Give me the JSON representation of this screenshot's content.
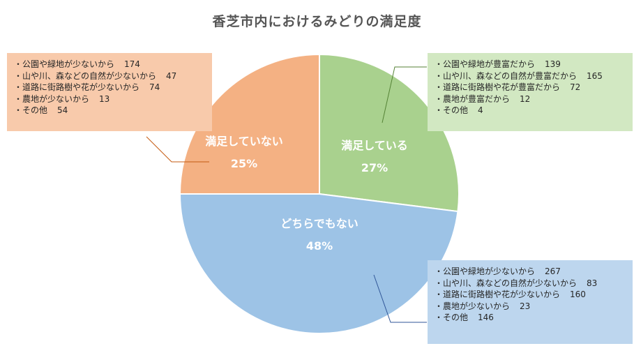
{
  "chart_data": {
    "type": "pie",
    "title": "香芝市内におけるみどりの満足度",
    "slices": [
      {
        "label": "満足している",
        "percent_label": "27%",
        "value": 27,
        "color": "#a9d18e"
      },
      {
        "label": "どちらでもない",
        "percent_label": "48%",
        "value": 48,
        "color": "#9dc3e6"
      },
      {
        "label": "満足していない",
        "percent_label": "25%",
        "value": 25,
        "color": "#f4b183"
      }
    ],
    "notes": {
      "satisfied": [
        {
          "text": "・公園や緑地が豊富だから",
          "count": "139"
        },
        {
          "text": "・山や川、森などの自然が豊富だから",
          "count": "165"
        },
        {
          "text": "・道路に街路樹や花が豊富だから",
          "count": "72"
        },
        {
          "text": "・農地が豊富だから",
          "count": "12"
        },
        {
          "text": "・その他",
          "count": "4"
        }
      ],
      "neutral": [
        {
          "text": "・公園や緑地が少ないから",
          "count": "267"
        },
        {
          "text": "・山や川、森などの自然が少ないから",
          "count": "83"
        },
        {
          "text": "・道路に街路樹や花が少ないから",
          "count": "160"
        },
        {
          "text": "・農地が少ないから",
          "count": "23"
        },
        {
          "text": "・その他",
          "count": "146"
        }
      ],
      "unsatisfied": [
        {
          "text": "・公園や緑地が少ないから",
          "count": "174"
        },
        {
          "text": "・山や川、森などの自然が少ないから",
          "count": "47"
        },
        {
          "text": "・道路に街路樹や花が少ないから",
          "count": "74"
        },
        {
          "text": "・農地が少ないから",
          "count": "13"
        },
        {
          "text": "・その他",
          "count": "54"
        }
      ]
    }
  }
}
